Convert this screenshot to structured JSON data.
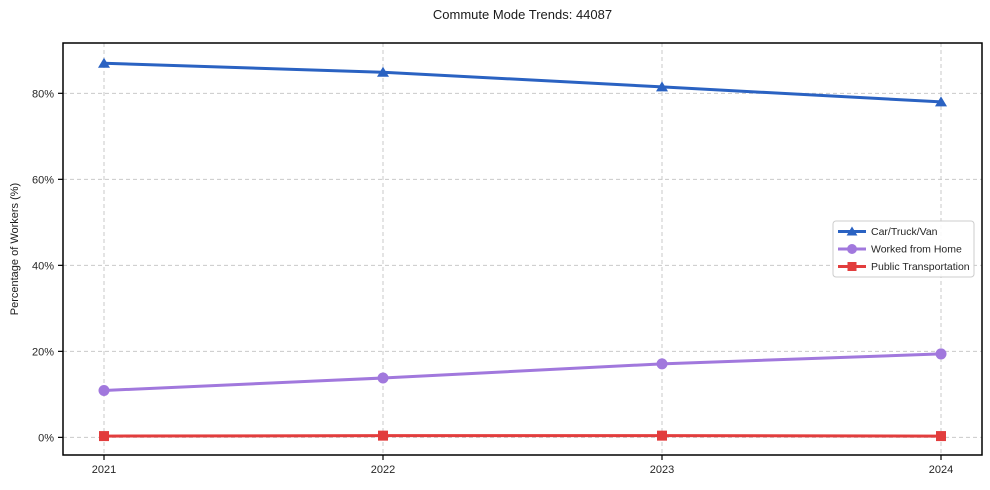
{
  "chart_data": {
    "type": "line",
    "title": "Commute Mode Trends: 44087",
    "xlabel": "",
    "ylabel": "Percentage of Workers (%)",
    "categories": [
      "2021",
      "2022",
      "2023",
      "2024"
    ],
    "series": [
      {
        "name": "Car/Truck/Van",
        "marker": "triangle",
        "color": "#2a62c2",
        "values": [
          87.0,
          84.9,
          81.5,
          78.0
        ]
      },
      {
        "name": "Worked from Home",
        "marker": "circle",
        "color": "#a178dd",
        "values": [
          10.9,
          13.8,
          17.1,
          19.4
        ]
      },
      {
        "name": "Public Transportation",
        "marker": "square",
        "color": "#e23d3d",
        "values": [
          0.3,
          0.4,
          0.4,
          0.3
        ]
      }
    ],
    "yticks": [
      0,
      20,
      40,
      60,
      80
    ],
    "ytick_labels": [
      "0%",
      "20%",
      "40%",
      "60%",
      "80%"
    ],
    "ylim": [
      -4.1,
      91.7
    ],
    "grid": true,
    "legend_position": "center-right",
    "colors": {
      "frame": "#000000",
      "grid": "#c9c9c9",
      "text": "#262626",
      "legend_border": "#cccccc"
    }
  }
}
